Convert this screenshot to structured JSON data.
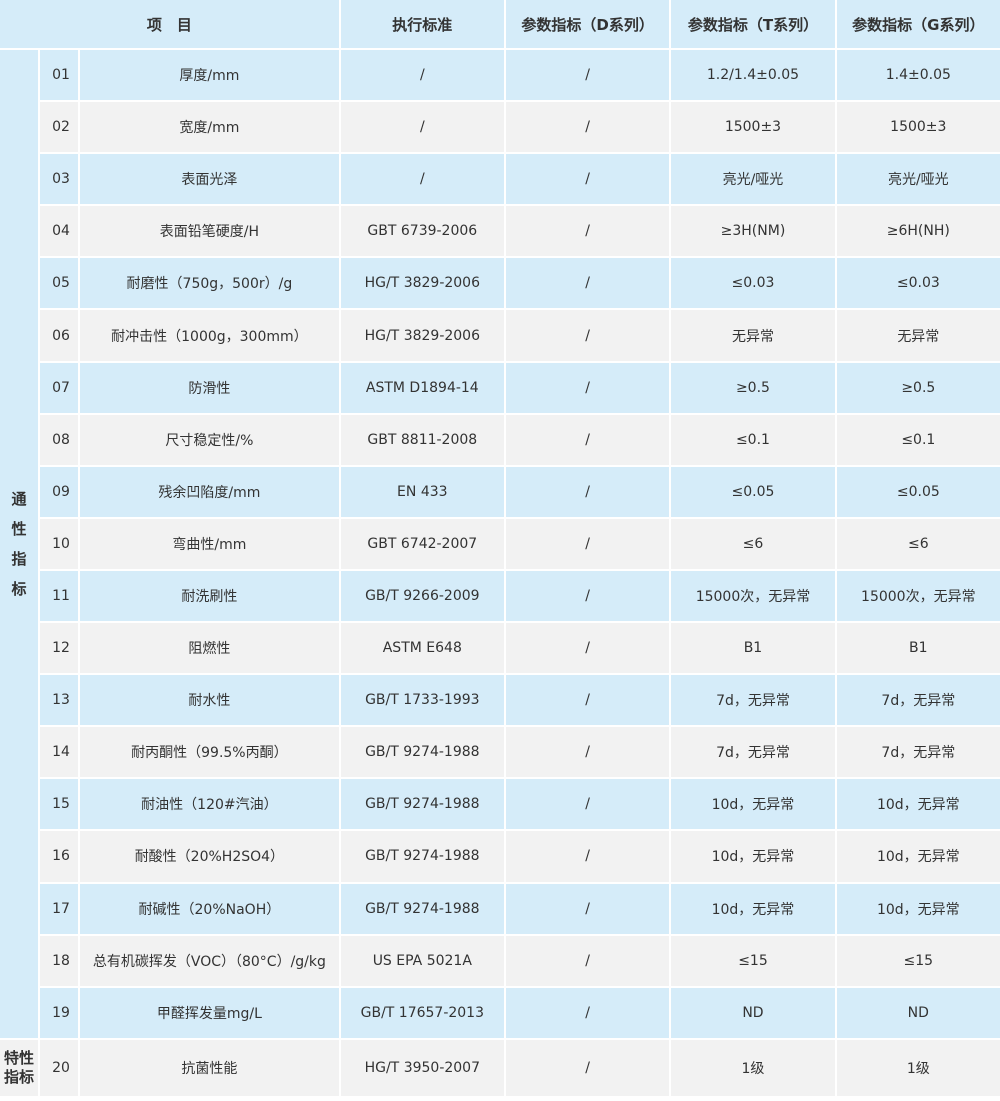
{
  "header": {
    "item": "项　目",
    "standard": "执行标准",
    "d": "参数指标（D系列）",
    "t": "参数指标（T系列）",
    "g": "参数指标（G系列）"
  },
  "groups": {
    "general": [
      "通",
      "性",
      "指",
      "标"
    ],
    "special": [
      "特性",
      "指标"
    ]
  },
  "rows": [
    {
      "no": "01",
      "item": "厚度/mm",
      "std": "/",
      "d": "/",
      "t": "1.2/1.4±0.05",
      "g": "1.4±0.05"
    },
    {
      "no": "02",
      "item": "宽度/mm",
      "std": "/",
      "d": "/",
      "t": "1500±3",
      "g": "1500±3"
    },
    {
      "no": "03",
      "item": "表面光泽",
      "std": "/",
      "d": "/",
      "t": "亮光/哑光",
      "g": "亮光/哑光"
    },
    {
      "no": "04",
      "item": "表面铅笔硬度/H",
      "std": "GBT 6739-2006",
      "d": "/",
      "t": "≥3H(NM)",
      "g": "≥6H(NH)"
    },
    {
      "no": "05",
      "item": "耐磨性（750g，500r）/g",
      "std": "HG/T 3829-2006",
      "d": "/",
      "t": "≤0.03",
      "g": "≤0.03"
    },
    {
      "no": "06",
      "item": "耐冲击性（1000g，300mm）",
      "std": "HG/T 3829-2006",
      "d": "/",
      "t": "无异常",
      "g": "无异常"
    },
    {
      "no": "07",
      "item": "防滑性",
      "std": "ASTM D1894-14",
      "d": "/",
      "t": "≥0.5",
      "g": "≥0.5"
    },
    {
      "no": "08",
      "item": "尺寸稳定性/%",
      "std": "GBT 8811-2008",
      "d": "/",
      "t": "≤0.1",
      "g": "≤0.1"
    },
    {
      "no": "09",
      "item": "残余凹陷度/mm",
      "std": "EN 433",
      "d": "/",
      "t": "≤0.05",
      "g": "≤0.05"
    },
    {
      "no": "10",
      "item": "弯曲性/mm",
      "std": "GBT 6742-2007",
      "d": "/",
      "t": "≤6",
      "g": "≤6"
    },
    {
      "no": "11",
      "item": "耐洗刷性",
      "std": "GB/T 9266-2009",
      "d": "/",
      "t": "15000次，无异常",
      "g": "15000次，无异常"
    },
    {
      "no": "12",
      "item": "阻燃性",
      "std": "ASTM E648",
      "d": "/",
      "t": "B1",
      "g": "B1"
    },
    {
      "no": "13",
      "item": "耐水性",
      "std": "GB/T 1733-1993",
      "d": "/",
      "t": "7d，无异常",
      "g": "7d，无异常"
    },
    {
      "no": "14",
      "item": "耐丙酮性（99.5%丙酮）",
      "std": "GB/T 9274-1988",
      "d": "/",
      "t": "7d，无异常",
      "g": "7d，无异常"
    },
    {
      "no": "15",
      "item": "耐油性（120#汽油）",
      "std": "GB/T 9274-1988",
      "d": "/",
      "t": "10d，无异常",
      "g": "10d，无异常"
    },
    {
      "no": "16",
      "item": "耐酸性（20%H2SO4）",
      "std": "GB/T 9274-1988",
      "d": "/",
      "t": "10d，无异常",
      "g": "10d，无异常"
    },
    {
      "no": "17",
      "item": "耐碱性（20%NaOH）",
      "std": "GB/T 9274-1988",
      "d": "/",
      "t": "10d，无异常",
      "g": "10d，无异常"
    },
    {
      "no": "18",
      "item": "总有机碳挥发（VOC）（80°C）/g/kg",
      "std": "US EPA 5021A",
      "d": "/",
      "t": "≤15",
      "g": "≤15"
    },
    {
      "no": "19",
      "item": "甲醛挥发量mg/L",
      "std": "GB/T 17657-2013",
      "d": "/",
      "t": "ND",
      "g": "ND"
    },
    {
      "no": "20",
      "item": "抗菌性能",
      "std": "HG/T 3950-2007",
      "d": "/",
      "t": "1级",
      "g": "1级"
    }
  ]
}
